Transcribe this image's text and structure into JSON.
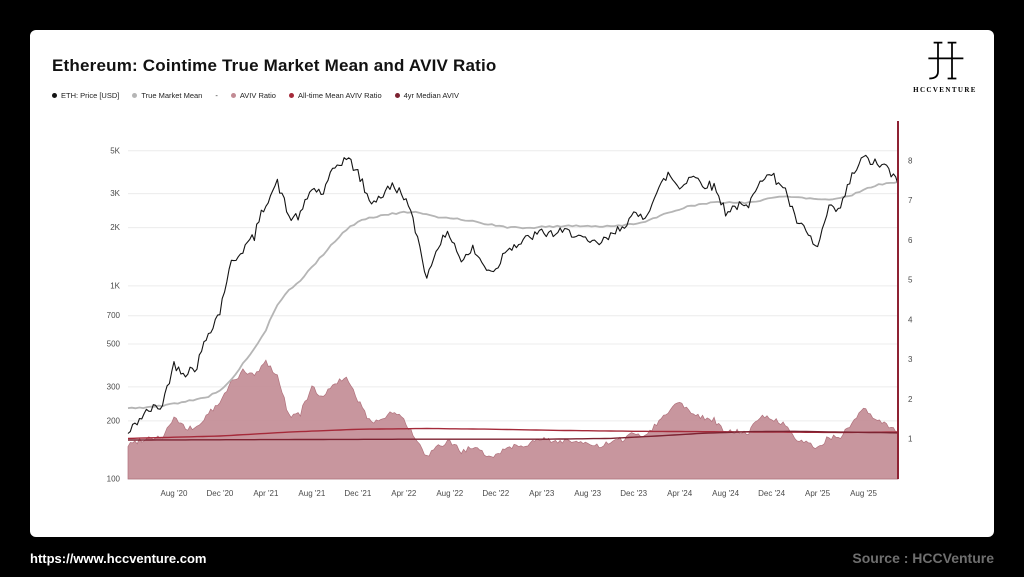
{
  "header": {
    "title": "Ethereum: Cointime True Market Mean and AVIV Ratio"
  },
  "logo": {
    "caption": "HCCVENTURE"
  },
  "legend": {
    "items": [
      {
        "label": "ETH: Price [USD]",
        "color": "#141414"
      },
      {
        "label": "True Market Mean",
        "color": "#b5b5b5"
      },
      {
        "label": "-",
        "color": ""
      },
      {
        "label": "AVIV Ratio",
        "color": "#c28b94"
      },
      {
        "label": "All-time Mean AVIV Ratio",
        "color": "#a52a3a"
      },
      {
        "label": "4yr Median AVIV",
        "color": "#7c2231"
      }
    ]
  },
  "footer": {
    "url": "https://www.hccventure.com",
    "source": "Source : HCCVenture"
  },
  "chart_data": {
    "type": "line",
    "title": "Ethereum: Cointime True Market Mean and AVIV Ratio",
    "x_domain": {
      "start": "Apr 2020",
      "end": "Nov 2025",
      "resolution": "monthly"
    },
    "months_total": 68,
    "x_ticks": {
      "first_tick_month": 4,
      "interval": 4,
      "labels": [
        "Aug '20",
        "Dec '20",
        "Apr '21",
        "Aug '21",
        "Dec '21",
        "Apr '22",
        "Aug '22",
        "Dec '22",
        "Apr '23",
        "Aug '23",
        "Dec '23",
        "Apr '24",
        "Aug '24",
        "Dec '24",
        "Apr '25",
        "Aug '25"
      ]
    },
    "left_axis": {
      "scale": "log",
      "unit": "USD",
      "ticks": [
        "5K",
        "3K",
        "2K",
        "1K",
        "700",
        "500",
        "300",
        "200",
        "100"
      ],
      "tick_values": [
        5000,
        3000,
        2000,
        1000,
        700,
        500,
        300,
        200,
        100
      ],
      "range": [
        100,
        6800
      ]
    },
    "right_axis": {
      "scale": "linear",
      "unit": "ratio",
      "ticks": [
        "8",
        "7",
        "6",
        "5",
        "4",
        "3",
        "2",
        "1"
      ],
      "tick_values": [
        8,
        7,
        6,
        5,
        4,
        3,
        2,
        1
      ],
      "range": [
        0,
        8.9
      ]
    },
    "series": [
      {
        "name": "AVIV Ratio",
        "axis": "right",
        "style": "area",
        "color": "#c28b94",
        "stroke": "#b0717c",
        "opacity": 0.9,
        "jitter": 0.07,
        "jitter_type": "linear",
        "sub": 5,
        "seed": 99,
        "values": [
          0.85,
          0.98,
          1.05,
          1.05,
          1.55,
          1.25,
          1.3,
          1.65,
          1.9,
          2.45,
          2.7,
          2.6,
          2.95,
          2.6,
          1.6,
          1.65,
          2.3,
          2.05,
          2.45,
          2.5,
          2.0,
          1.45,
          1.5,
          1.7,
          1.5,
          1.0,
          0.55,
          0.8,
          0.95,
          0.7,
          0.78,
          0.62,
          0.6,
          0.8,
          0.85,
          0.9,
          1.0,
          0.95,
          0.97,
          0.95,
          0.85,
          0.82,
          0.9,
          1.0,
          1.15,
          1.1,
          1.4,
          1.7,
          1.95,
          1.7,
          1.55,
          1.5,
          1.15,
          1.2,
          1.15,
          1.6,
          1.5,
          1.4,
          1.0,
          0.9,
          0.8,
          1.05,
          1.05,
          1.4,
          1.75,
          1.5,
          1.35,
          1.2
        ]
      },
      {
        "name": "True Market Mean",
        "axis": "left",
        "style": "line",
        "color": "#b5b5b5",
        "width": 1.8,
        "jitter": 0.004,
        "jitter_type": "log",
        "sub": 3,
        "seed": 5,
        "values": [
          232,
          234,
          236,
          239,
          246,
          252,
          258,
          268,
          288,
          325,
          395,
          470,
          590,
          790,
          950,
          1060,
          1250,
          1450,
          1700,
          1950,
          2150,
          2250,
          2310,
          2360,
          2400,
          2400,
          2330,
          2270,
          2250,
          2210,
          2160,
          2100,
          2050,
          2010,
          2000,
          2000,
          2020,
          2030,
          2040,
          2050,
          2040,
          2030,
          2030,
          2060,
          2100,
          2150,
          2250,
          2400,
          2500,
          2600,
          2650,
          2700,
          2700,
          2700,
          2700,
          2760,
          2850,
          2900,
          2900,
          2850,
          2810,
          2800,
          2850,
          2950,
          3150,
          3300,
          3400,
          3450
        ]
      },
      {
        "name": "ETH: Price [USD]",
        "axis": "left",
        "style": "line",
        "color": "#141414",
        "width": 1.1,
        "jitter": 0.025,
        "jitter_type": "log",
        "sub": 5,
        "seed": 42,
        "values": [
          170,
          205,
          230,
          240,
          390,
          355,
          385,
          570,
          730,
          1300,
          1550,
          1800,
          2700,
          3400,
          2250,
          2300,
          3200,
          3000,
          4100,
          4600,
          3850,
          2700,
          2900,
          3300,
          2950,
          1950,
          1070,
          1650,
          1850,
          1340,
          1550,
          1250,
          1200,
          1590,
          1640,
          1790,
          1880,
          1860,
          1900,
          1870,
          1650,
          1660,
          1790,
          2050,
          2290,
          2300,
          3000,
          3800,
          3200,
          3750,
          3400,
          3250,
          2420,
          2600,
          2520,
          3650,
          3700,
          3300,
          2240,
          1880,
          1550,
          2480,
          2480,
          3680,
          4600,
          4300,
          4100,
          3350
        ]
      },
      {
        "name": "All-time Mean AVIV Ratio",
        "axis": "right",
        "style": "line",
        "color": "#a52a3a",
        "width": 1.4,
        "jitter": 0,
        "jitter_type": "linear",
        "sub": 2,
        "seed": 1,
        "anchors": [
          [
            0,
            1.02
          ],
          [
            8,
            1.08
          ],
          [
            14,
            1.18
          ],
          [
            20,
            1.25
          ],
          [
            26,
            1.27
          ],
          [
            32,
            1.25
          ],
          [
            38,
            1.22
          ],
          [
            44,
            1.2
          ],
          [
            50,
            1.19
          ],
          [
            56,
            1.18
          ],
          [
            62,
            1.17
          ],
          [
            67,
            1.18
          ]
        ]
      },
      {
        "name": "4yr Median AVIV",
        "axis": "right",
        "style": "line",
        "color": "#7c2231",
        "width": 1.4,
        "jitter": 0,
        "jitter_type": "linear",
        "sub": 2,
        "seed": 2,
        "anchors": [
          [
            0,
            0.98
          ],
          [
            12,
            0.99
          ],
          [
            24,
            1.0
          ],
          [
            36,
            1.0
          ],
          [
            42,
            1.02
          ],
          [
            46,
            1.08
          ],
          [
            50,
            1.15
          ],
          [
            54,
            1.19
          ],
          [
            58,
            1.2
          ],
          [
            62,
            1.18
          ],
          [
            67,
            1.16
          ]
        ]
      }
    ],
    "layout_hints": {
      "grid": "horizontal-light",
      "legend_position": "top-left",
      "right_edge_marker_color": "#8e2233"
    }
  }
}
